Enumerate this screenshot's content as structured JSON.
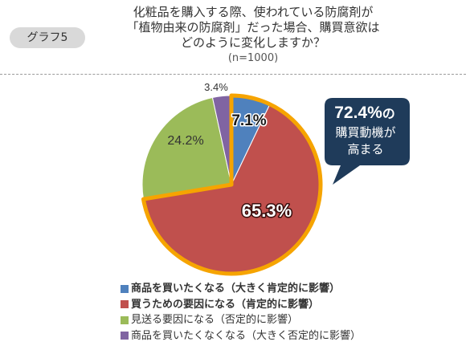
{
  "badge": "グラフ5",
  "title": {
    "line1": "化粧品を購入する際、使われている防腐剤が",
    "line2": "「植物由来の防腐剤」だった場合、購買意欲は",
    "line3": "どのように変化しますか？",
    "note": "(n=1000)"
  },
  "callout": {
    "value": "72.4%",
    "suffix": "の",
    "line2": "購買動機が",
    "line3": "高まる"
  },
  "colors": {
    "blue": "#4f81bd",
    "red": "#c0504d",
    "green": "#9bbb59",
    "purple": "#8064a2",
    "highlight": "#f6a400",
    "callout_bg": "#1f3b5a"
  },
  "chart_data": {
    "type": "pie",
    "start": "12 o'clock",
    "direction": "clockwise",
    "categories": [
      "商品を買いたくなる（大きく肯定的に影響）",
      "買うための要因になる（肯定的に影響）",
      "見送る要因になる（否定的に影響）",
      "商品を買いたくなくなる（大きく否定的に影響）"
    ],
    "values": [
      7.1,
      65.3,
      24.2,
      3.4
    ],
    "labels": [
      "7.1%",
      "65.3%",
      "24.2%",
      "3.4%"
    ],
    "highlighted": [
      0,
      1
    ],
    "colors": [
      "#4f81bd",
      "#c0504d",
      "#9bbb59",
      "#8064a2"
    ],
    "legend_bold": [
      true,
      true,
      false,
      false
    ],
    "legend": "bottom"
  }
}
